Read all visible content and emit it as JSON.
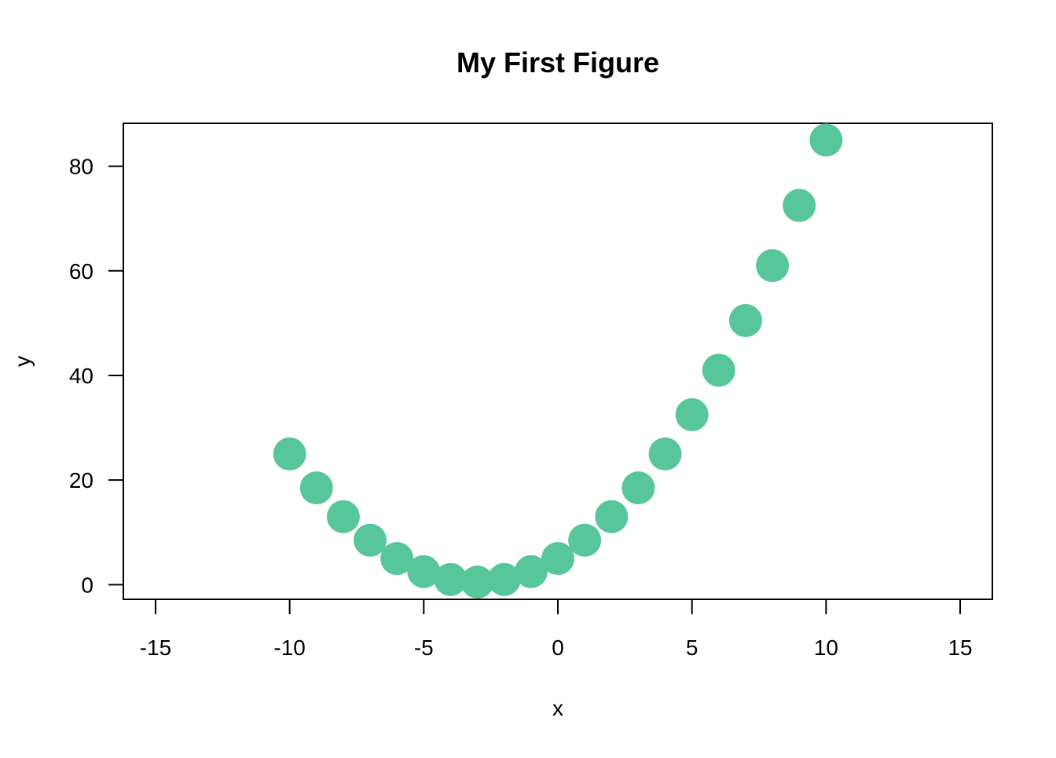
{
  "chart_data": {
    "type": "scatter",
    "title": "My First Figure",
    "xlabel": "x",
    "ylabel": "y",
    "xlim": [
      -16.2,
      16.2
    ],
    "ylim": [
      -2.8,
      88.2
    ],
    "x_ticks": [
      -15,
      -10,
      -5,
      0,
      5,
      10,
      15
    ],
    "x_tick_labels": [
      "-15",
      "-10",
      "-5",
      "0",
      "5",
      "10",
      "15"
    ],
    "y_ticks": [
      0,
      20,
      40,
      60,
      80
    ],
    "y_tick_labels": [
      "0",
      "20",
      "40",
      "60",
      "80"
    ],
    "grid": false,
    "legend": "none",
    "marker_color": "#57c69a",
    "x": [
      -10,
      -9,
      -8,
      -7,
      -6,
      -5,
      -4,
      -3,
      -2,
      -1,
      0,
      1,
      2,
      3,
      4,
      5,
      6,
      7,
      8,
      9,
      10
    ],
    "y": [
      25,
      18.5,
      13,
      8.5,
      5,
      2.5,
      1,
      0.5,
      1,
      2.5,
      5,
      8.5,
      13,
      18.5,
      25,
      32.5,
      41,
      50.5,
      61,
      72.5,
      85
    ]
  }
}
